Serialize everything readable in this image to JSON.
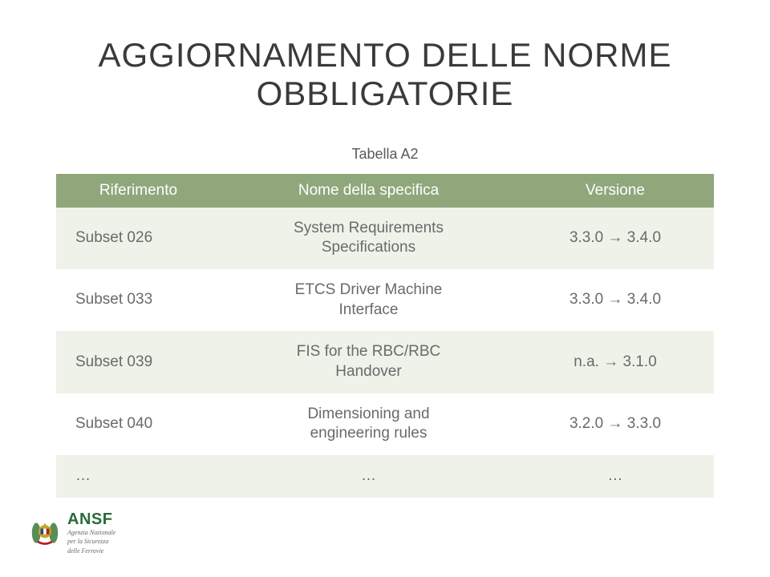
{
  "title_line1": "AGGIORNAMENTO DELLE NORME",
  "title_line2": "OBBLIGATORIE",
  "title_fontsize": 42,
  "title_color": "#3a3a3a",
  "table_label": "Tabella A2",
  "table_label_fontsize": 18,
  "table_label_color": "#5a5a5a",
  "table": {
    "header_bg": "#8fa77a",
    "header_text_color": "#ffffff",
    "odd_row_bg": "#eef2e9",
    "even_row_bg": "#ffffff",
    "cell_text_color": "#6a6a6a",
    "cell_fontsize": 19,
    "header_fontsize": 19,
    "columns": [
      "Riferimento",
      "Nome della specifica",
      "Versione"
    ],
    "rows": [
      {
        "ref": "Subset 026",
        "name_l1": "System Requirements",
        "name_l2": "Specifications",
        "ver_from": "3.3.0",
        "ver_to": "3.4.0"
      },
      {
        "ref": "Subset 033",
        "name_l1": "ETCS Driver Machine",
        "name_l2": "Interface",
        "ver_from": "3.3.0",
        "ver_to": "3.4.0"
      },
      {
        "ref": "Subset 039",
        "name_l1": "FIS for the RBC/RBC",
        "name_l2": "Handover",
        "ver_from": "n.a.",
        "ver_to": "3.1.0"
      },
      {
        "ref": "Subset 040",
        "name_l1": "Dimensioning and",
        "name_l2": "engineering rules",
        "ver_from": "3.2.0",
        "ver_to": "3.3.0"
      },
      {
        "ref": "…",
        "name_l1": "…",
        "name_l2": "",
        "ver_from": "…",
        "ver_to": ""
      }
    ]
  },
  "arrow_glyph": "→",
  "footer": {
    "ansf": "ANSF",
    "ansf_color": "#2a6a3a",
    "ansf_fontsize": 20,
    "sub_l1": "Agenzia Nazionale",
    "sub_l2": "per la Sicurezza",
    "sub_l3": "delle Ferrovie",
    "sub_fontsize": 8,
    "emblem_gold": "#c9a227",
    "emblem_leaf": "#3a7a3a",
    "emblem_red": "#b02222",
    "emblem_blue": "#2a4a8a",
    "emblem_white": "#ffffff"
  }
}
